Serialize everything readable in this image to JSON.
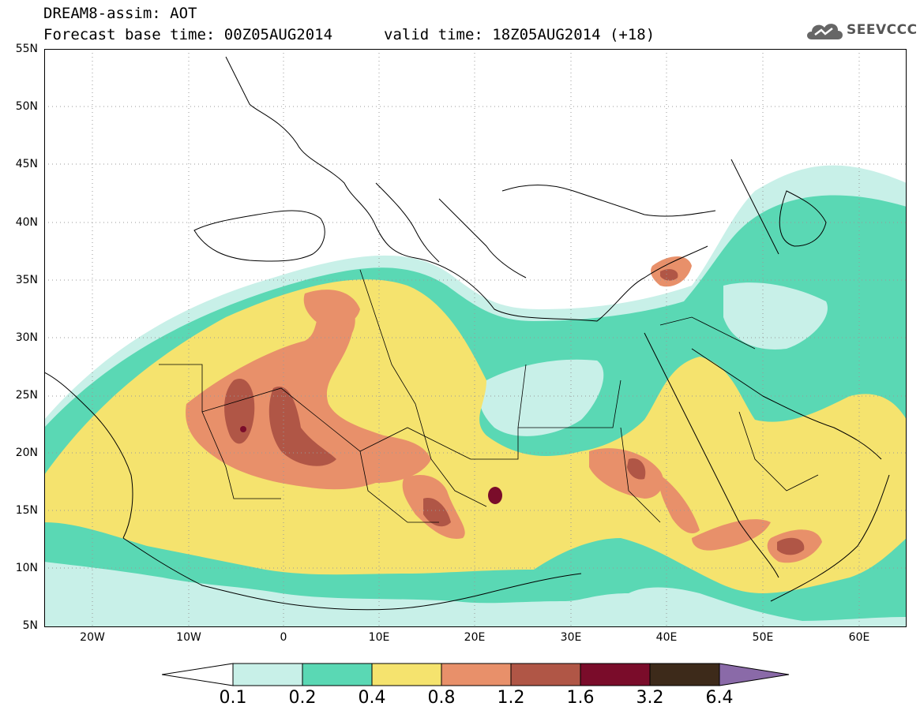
{
  "header": {
    "line1": "DREAM8-assim: AOT",
    "base_time": "Forecast base time: 00Z05AUG2014",
    "valid_time": "valid time: 18Z05AUG2014 (+18)"
  },
  "logo": {
    "text": "SEEVCCC",
    "icon": "cloud-logo-icon"
  },
  "axes": {
    "y_ticks": [
      "55N",
      "50N",
      "45N",
      "40N",
      "35N",
      "30N",
      "25N",
      "20N",
      "15N",
      "10N",
      "5N"
    ],
    "x_ticks": [
      "20W",
      "10W",
      "0",
      "10E",
      "20E",
      "30E",
      "40E",
      "50E",
      "60E"
    ]
  },
  "colorbar": {
    "levels": [
      "0.1",
      "0.2",
      "0.4",
      "0.8",
      "1.2",
      "1.6",
      "3.2",
      "6.4"
    ],
    "colors": {
      "c01": "#c8f0e8",
      "c02": "#5ad8b4",
      "c04": "#f5e36e",
      "c08": "#e8906a",
      "c12": "#b05646",
      "c16": "#7a0c2a",
      "c32": "#3d2a1a",
      "c64": "#8a6aa8"
    }
  }
}
